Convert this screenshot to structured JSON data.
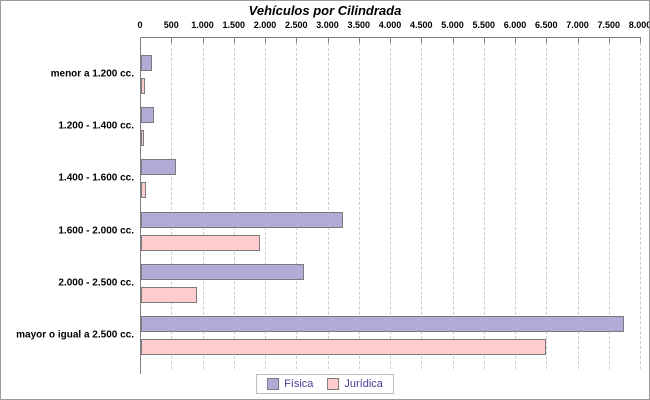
{
  "title": "Vehículos por Cilindrada",
  "chart_data": {
    "type": "bar",
    "orientation": "horizontal",
    "title": "Vehículos por Cilindrada",
    "xlabel": "",
    "ylabel": "",
    "xlim": [
      0,
      8000
    ],
    "grid": "vertical-dashed",
    "legend_position": "bottom",
    "categories": [
      "menor a 1.200 cc.",
      "1.200 - 1.400 cc.",
      "1.400 - 1.600 cc.",
      "1.600 - 2.000 cc.",
      "2.000 - 2.500 cc.",
      "mayor o igual a 2.500 cc."
    ],
    "series": [
      {
        "name": "Física",
        "fill": "#b4aad8",
        "border": "#7a7a7a",
        "values": [
          150,
          180,
          520,
          3200,
          2580,
          7690
        ]
      },
      {
        "name": "Jurídica",
        "fill": "#ffcdcd",
        "border": "#7a7a7a",
        "values": [
          30,
          10,
          50,
          1870,
          870,
          6450
        ]
      }
    ],
    "x_ticks": [
      {
        "v": 0,
        "label": "0"
      },
      {
        "v": 500,
        "label": "500"
      },
      {
        "v": 1000,
        "label": "1.000"
      },
      {
        "v": 1500,
        "label": "1.500"
      },
      {
        "v": 2000,
        "label": "2.000"
      },
      {
        "v": 2500,
        "label": "2.500"
      },
      {
        "v": 3000,
        "label": "3.000"
      },
      {
        "v": 3500,
        "label": "3.500"
      },
      {
        "v": 4000,
        "label": "4.000"
      },
      {
        "v": 4500,
        "label": "4.500"
      },
      {
        "v": 5000,
        "label": "5.000"
      },
      {
        "v": 5500,
        "label": "5.500"
      },
      {
        "v": 6000,
        "label": "6.000"
      },
      {
        "v": 6500,
        "label": "6.500"
      },
      {
        "v": 7000,
        "label": "7.000"
      },
      {
        "v": 7500,
        "label": "7.500"
      },
      {
        "v": 8000,
        "label": "8.000"
      }
    ]
  },
  "colors": {
    "axis": "#808080",
    "grid": "#cccccc",
    "legend_text": "#4b3a99",
    "title_text": "#000000"
  }
}
